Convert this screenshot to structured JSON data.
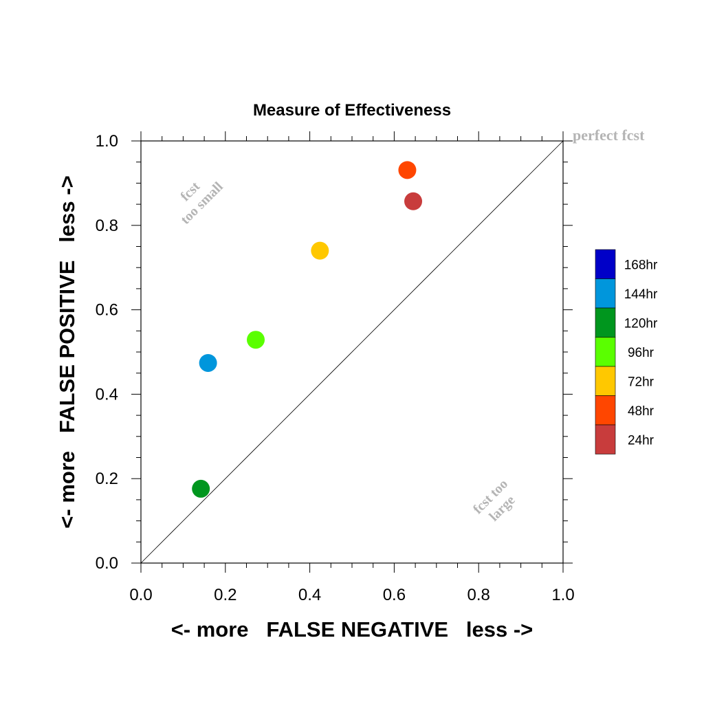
{
  "chart_data": {
    "type": "scatter",
    "title": "Measure of Effectiveness",
    "xlabel": "<- more   FALSE NEGATIVE   less ->",
    "ylabel": "<- more   FALSE POSITIVE   less ->",
    "xlim": [
      0.0,
      1.0
    ],
    "ylim": [
      0.0,
      1.0
    ],
    "xticks": [
      "0.0",
      "0.2",
      "0.4",
      "0.6",
      "0.8",
      "1.0"
    ],
    "yticks": [
      "0.0",
      "0.2",
      "0.4",
      "0.6",
      "0.8",
      "1.0"
    ],
    "grid": false,
    "legend_position": "right",
    "annotations": {
      "perfect": "perfect fcst",
      "too_small_1": "fcst",
      "too_small_2": "too small",
      "too_large_1": "fcst too",
      "too_large_2": "large"
    },
    "legend": [
      {
        "label": "168hr",
        "color": "#0000c8"
      },
      {
        "label": "144hr",
        "color": "#0096dc"
      },
      {
        "label": "120hr",
        "color": "#00961e"
      },
      {
        "label": "96hr",
        "color": "#5aff00"
      },
      {
        "label": "72hr",
        "color": "#ffc800"
      },
      {
        "label": "48hr",
        "color": "#ff4600"
      },
      {
        "label": "24hr",
        "color": "#c83c3c"
      }
    ],
    "series": [
      {
        "name": "24hr",
        "x": 0.645,
        "y": 0.857,
        "color": "#c83c3c"
      },
      {
        "name": "48hr",
        "x": 0.631,
        "y": 0.931,
        "color": "#ff4600"
      },
      {
        "name": "72hr",
        "x": 0.424,
        "y": 0.74,
        "color": "#ffc800"
      },
      {
        "name": "96hr",
        "x": 0.272,
        "y": 0.529,
        "color": "#5aff00"
      },
      {
        "name": "120hr",
        "x": 0.142,
        "y": 0.176,
        "color": "#00961e"
      },
      {
        "name": "144hr",
        "x": 0.159,
        "y": 0.474,
        "color": "#0096dc"
      }
    ]
  }
}
